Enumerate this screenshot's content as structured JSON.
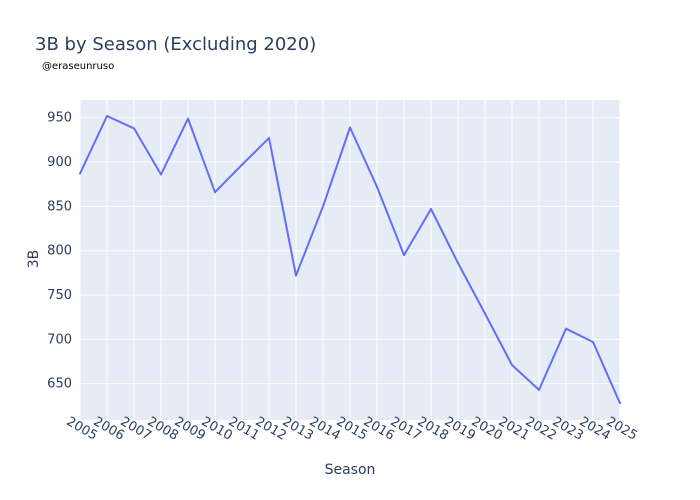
{
  "chart_data": {
    "type": "line",
    "title": "3B by Season (Excluding 2020)",
    "subtitle": "@eraseunruso",
    "xlabel": "Season",
    "ylabel": "3B",
    "x": [
      "2005",
      "2006",
      "2007",
      "2008",
      "2009",
      "2010",
      "2011",
      "2012",
      "2013",
      "2014",
      "2015",
      "2016",
      "2017",
      "2018",
      "2019",
      "2020",
      "2021",
      "2022",
      "2023",
      "2024",
      "2025"
    ],
    "series": [
      {
        "name": "",
        "values": [
          887,
          952,
          938,
          886,
          949,
          866,
          897,
          927,
          772,
          850,
          939,
          872,
          795,
          847,
          786,
          729,
          671,
          643,
          712,
          697,
          628
        ],
        "color": "#636efa"
      }
    ],
    "ylim": [
      609,
      970
    ],
    "yticks": [
      650,
      700,
      750,
      800,
      850,
      900,
      950
    ],
    "grid": true,
    "colors": {
      "plot_bg": "#e5ecf6",
      "grid": "#ffffff",
      "text": "#2a3f5f"
    }
  }
}
